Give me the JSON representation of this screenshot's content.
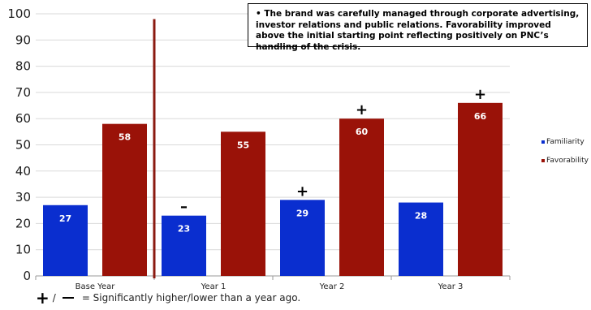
{
  "chart_data": {
    "type": "bar",
    "categories": [
      "Base Year",
      "Year 1",
      "Year 2",
      "Year 3"
    ],
    "series": [
      {
        "name": "Familiarity",
        "values": [
          27,
          23,
          29,
          28
        ],
        "color": "#0a2ecf"
      },
      {
        "name": "Favorability",
        "values": [
          58,
          55,
          60,
          66
        ],
        "color": "#9a1208"
      }
    ],
    "data_labels": {
      "Familiarity": [
        "27",
        "23",
        "29",
        "28"
      ],
      "Favorability": [
        "58",
        "55",
        "60",
        "66"
      ]
    },
    "significance_markers": [
      {
        "category": "Year 1",
        "series": "Familiarity",
        "symbol": "–"
      },
      {
        "category": "Year 2",
        "series": "Familiarity",
        "symbol": "+"
      },
      {
        "category": "Year 2",
        "series": "Favorability",
        "symbol": "+"
      },
      {
        "category": "Year 3",
        "series": "Favorability",
        "symbol": "+"
      }
    ],
    "ylim": [
      0,
      100
    ],
    "yticks": [
      "0",
      "10",
      "20",
      "30",
      "40",
      "50",
      "60",
      "70",
      "80",
      "90",
      "100"
    ],
    "grid": true,
    "legend_position": "right",
    "divider_after_category": "Base Year",
    "divider_color": "#8b1a10"
  },
  "callout": {
    "text": "• The brand was carefully managed through corporate advertising, investor relations and public relations. Favorability improved above the initial starting point reflecting positively on PNC’s handling of the crisis."
  },
  "legend": {
    "items": [
      {
        "label": "Familiarity",
        "color": "#0a2ecf"
      },
      {
        "label": "Favorability",
        "color": "#9a1208"
      }
    ]
  },
  "footnote": {
    "plus": "+",
    "slash": "/",
    "text": "= Significantly higher/lower than a year ago."
  }
}
